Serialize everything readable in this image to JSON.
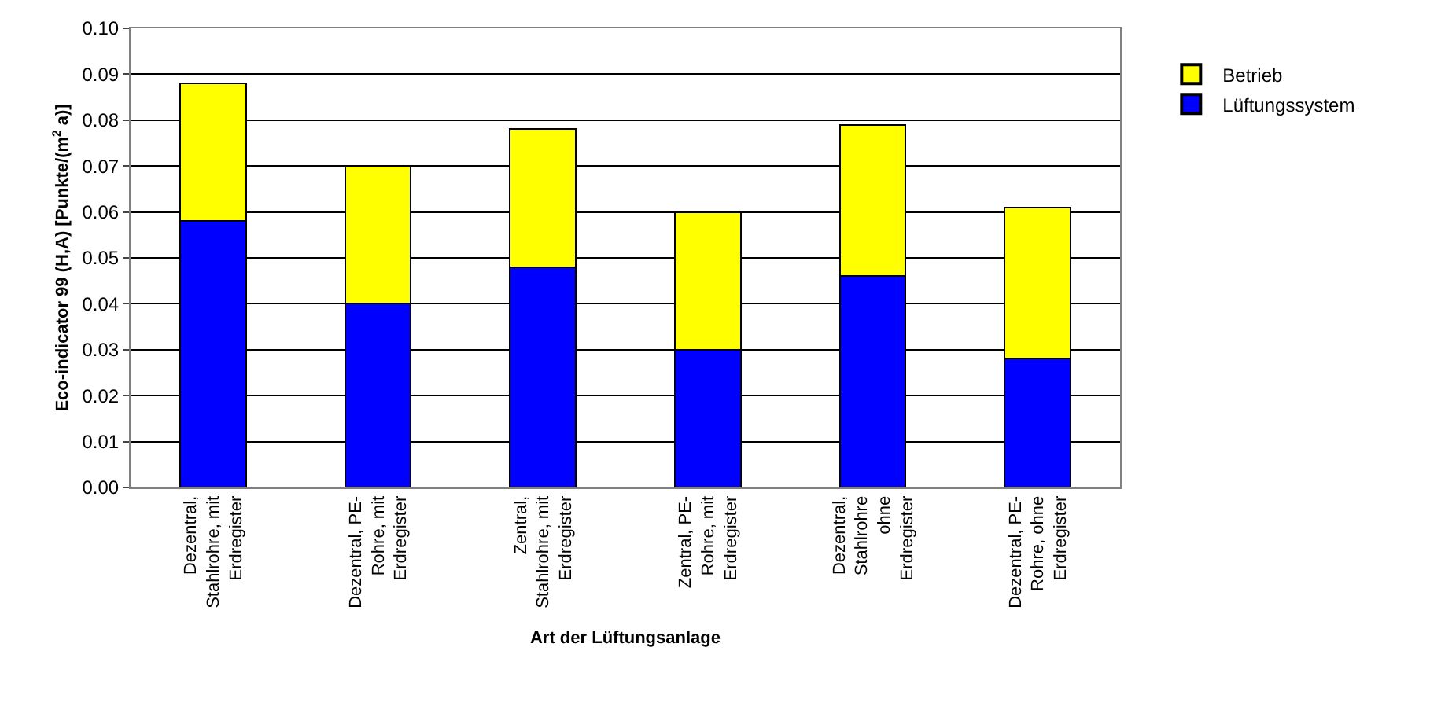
{
  "chart_data": {
    "type": "bar",
    "stacked": true,
    "xlabel": "Art der Lüftungsanlage",
    "ylabel": "Eco-indicator 99 (H,A) [Punkte/(m$^{2}$ a)]",
    "categories": [
      "Dezentral,\nStahlrohre, mit\nErdregister",
      "Dezentral, PE-\nRohre, mit\nErdregister",
      "Zentral,\nStahlrohre, mit\nErdregister",
      "Zentral, PE-\nRohre, mit\nErdregister",
      "Dezentral,\nStahlrohre\nohne\nErdregister",
      "Dezentral, PE-\nRohre, ohne\nErdregister"
    ],
    "series": [
      {
        "name": "Lüftungssystem",
        "color": "#0000ff",
        "values": [
          0.058,
          0.04,
          0.048,
          0.03,
          0.046,
          0.028
        ]
      },
      {
        "name": "Betrieb",
        "color": "#ffff00",
        "values": [
          0.03,
          0.03,
          0.03,
          0.03,
          0.033,
          0.033
        ]
      }
    ],
    "ylim": [
      0,
      0.1
    ],
    "yticks": [
      {
        "value": 0,
        "label": "0.00"
      },
      {
        "value": 0.01,
        "label": "0.01"
      },
      {
        "value": 0.02,
        "label": "0.02"
      },
      {
        "value": 0.03,
        "label": "0.03"
      },
      {
        "value": 0.04,
        "label": "0.04"
      },
      {
        "value": 0.05,
        "label": "0.05"
      },
      {
        "value": 0.06,
        "label": "0.06"
      },
      {
        "value": 0.07,
        "label": "0.07"
      },
      {
        "value": 0.08,
        "label": "0.08"
      },
      {
        "value": 0.09,
        "label": "0.09"
      },
      {
        "value": 0.1,
        "label": "0.10"
      }
    ],
    "grid": "y",
    "legend": "right"
  }
}
